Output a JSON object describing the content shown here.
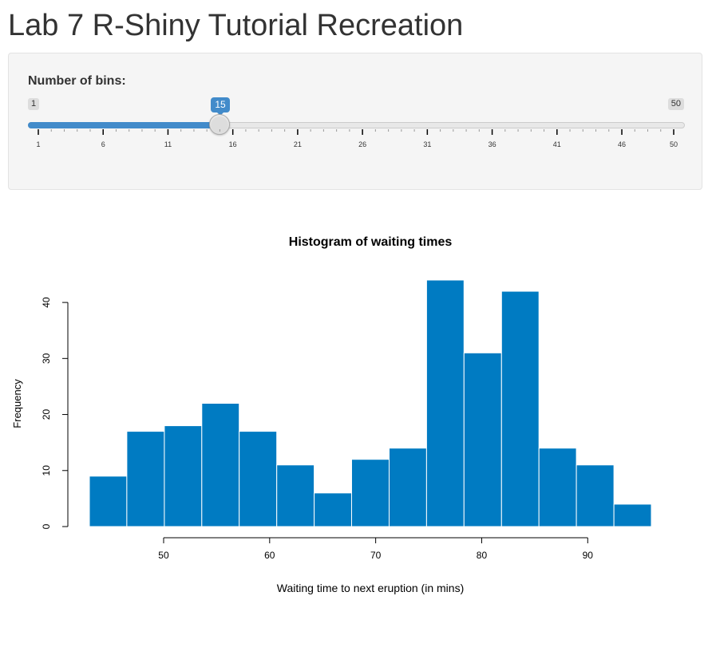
{
  "app": {
    "title": "Lab 7 R-Shiny Tutorial Recreation"
  },
  "sidebar": {
    "slider": {
      "label": "Number of bins:",
      "min": 1,
      "max": 50,
      "value": 15,
      "min_label": "1",
      "max_label": "50",
      "value_label": "15",
      "grid_labels": [
        "1",
        "6",
        "11",
        "16",
        "21",
        "26",
        "31",
        "36",
        "41",
        "46",
        "50"
      ],
      "accent_color": "#428bca"
    }
  },
  "chart_data": {
    "type": "bar",
    "title": "Histogram of waiting times",
    "xlabel": "Waiting time to next eruption (in mins)",
    "ylabel": "Frequency",
    "bar_color": "#007bc2",
    "bin_edges": [
      43,
      46.53,
      50.07,
      53.6,
      57.13,
      60.67,
      64.2,
      67.73,
      71.27,
      74.8,
      78.33,
      81.87,
      85.4,
      88.93,
      92.47,
      96
    ],
    "values": [
      9,
      17,
      18,
      22,
      17,
      11,
      6,
      12,
      14,
      44,
      31,
      42,
      14,
      11,
      4
    ],
    "xlim": [
      43,
      96
    ],
    "ylim": [
      0,
      44
    ],
    "x_ticks": [
      50,
      60,
      70,
      80,
      90
    ],
    "y_ticks": [
      0,
      10,
      20,
      30,
      40
    ],
    "grid": false,
    "legend": "none"
  }
}
